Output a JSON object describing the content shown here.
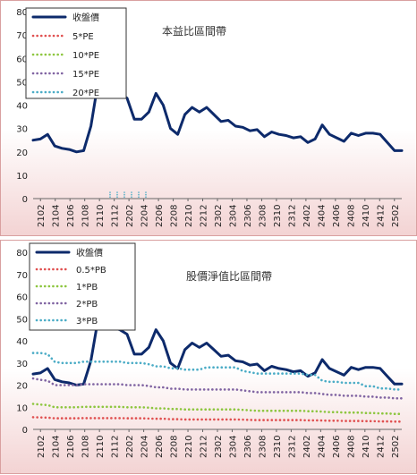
{
  "chart_data": [
    {
      "type": "line",
      "title": "本益比區間帶",
      "ylim": [
        0,
        80
      ],
      "yticks": [
        "0",
        "10",
        "20",
        "30",
        "40",
        "50",
        "60",
        "70",
        "80"
      ],
      "xticks": [
        "2102",
        "2104",
        "2106",
        "2108",
        "2110",
        "2112",
        "2202",
        "2204",
        "2206",
        "2208",
        "2210",
        "2212",
        "2302",
        "2304",
        "2306",
        "2308",
        "2310",
        "2312",
        "2402",
        "2404",
        "2406",
        "2408",
        "2410",
        "2412",
        "2502"
      ],
      "legend_position": "top-left",
      "series": [
        {
          "name": "收盤價",
          "color": "#0d2a6b",
          "style": "solid",
          "values": [
            25,
            25.5,
            27.5,
            22.5,
            21.5,
            21,
            20,
            20.5,
            31,
            50,
            58,
            46,
            45,
            43,
            34,
            34,
            37,
            45,
            40,
            30,
            27.5,
            36,
            39,
            37,
            39,
            36,
            33,
            33.5,
            31,
            30.5,
            29,
            29.5,
            26.5,
            28.5,
            27.5,
            27,
            26,
            26.5,
            24,
            25.5,
            31.5,
            27.5,
            26,
            24.5,
            28,
            27,
            28,
            28,
            27.5,
            24,
            20.5,
            20.5
          ]
        },
        {
          "name": "5*PE",
          "color": "#e05050",
          "style": "dotted",
          "values": []
        },
        {
          "name": "10*PE",
          "color": "#8dc63f",
          "style": "dotted",
          "values": []
        },
        {
          "name": "15*PE",
          "color": "#8064a2",
          "style": "dotted",
          "values": []
        },
        {
          "name": "20*PE",
          "color": "#4bacc6",
          "style": "dotted",
          "values": []
        }
      ]
    },
    {
      "type": "line",
      "title": "股價淨值比區間帶",
      "ylim": [
        0,
        80
      ],
      "yticks": [
        "0",
        "10",
        "20",
        "30",
        "40",
        "50",
        "60",
        "70",
        "80"
      ],
      "xticks": [
        "2102",
        "2104",
        "2106",
        "2108",
        "2110",
        "2112",
        "2202",
        "2204",
        "2206",
        "2208",
        "2210",
        "2212",
        "2302",
        "2304",
        "2306",
        "2308",
        "2310",
        "2312",
        "2402",
        "2404",
        "2406",
        "2408",
        "2410",
        "2412",
        "2502"
      ],
      "legend_position": "top-left",
      "series": [
        {
          "name": "收盤價",
          "color": "#0d2a6b",
          "style": "solid",
          "values": [
            25,
            25.5,
            27.5,
            22.5,
            21.5,
            21,
            20,
            20.5,
            31,
            50,
            58,
            46,
            45,
            43,
            34,
            34,
            37,
            45,
            40,
            30,
            27.5,
            36,
            39,
            37,
            39,
            36,
            33,
            33.5,
            31,
            30.5,
            29,
            29.5,
            26.5,
            28.5,
            27.5,
            27,
            26,
            26.5,
            24,
            25.5,
            31.5,
            27.5,
            26,
            24.5,
            28,
            27,
            28,
            28,
            27.5,
            24,
            20.5,
            20.5
          ]
        },
        {
          "name": "0.5*PB",
          "color": "#e05050",
          "style": "dotted",
          "values": [
            5.5,
            5.4,
            5.3,
            5,
            5,
            5,
            5,
            5.1,
            5.1,
            5.1,
            5.1,
            5.1,
            5.1,
            5,
            5,
            5,
            4.9,
            4.8,
            4.8,
            4.6,
            4.6,
            4.5,
            4.5,
            4.5,
            4.5,
            4.5,
            4.5,
            4.5,
            4.5,
            4.4,
            4.3,
            4.2,
            4.2,
            4.2,
            4.2,
            4.2,
            4.2,
            4.2,
            4.1,
            4.1,
            4,
            3.9,
            3.9,
            3.8,
            3.8,
            3.8,
            3.7,
            3.7,
            3.6,
            3.6,
            3.5,
            3.5
          ]
        },
        {
          "name": "1*PB",
          "color": "#8dc63f",
          "style": "dotted",
          "values": [
            11.5,
            11.2,
            11,
            10,
            10,
            10,
            10,
            10.2,
            10.2,
            10.2,
            10.2,
            10.2,
            10.2,
            10,
            10,
            10,
            9.8,
            9.5,
            9.5,
            9.2,
            9.2,
            9,
            9,
            9,
            9,
            9,
            9,
            9,
            9,
            8.8,
            8.6,
            8.4,
            8.4,
            8.4,
            8.4,
            8.4,
            8.4,
            8.4,
            8.2,
            8.2,
            8,
            7.8,
            7.8,
            7.6,
            7.6,
            7.6,
            7.4,
            7.4,
            7.2,
            7.2,
            7,
            7
          ]
        },
        {
          "name": "2*PB",
          "color": "#8064a2",
          "style": "dotted",
          "values": [
            23,
            22.4,
            22,
            20,
            20,
            20,
            20,
            20.4,
            20.4,
            20.4,
            20.4,
            20.4,
            20.4,
            20,
            20,
            20,
            19.6,
            19,
            19,
            18.4,
            18.4,
            18,
            18,
            18,
            18,
            18,
            18,
            18,
            18,
            17.6,
            17.2,
            16.8,
            16.8,
            16.8,
            16.8,
            16.8,
            16.8,
            16.8,
            16.4,
            16.4,
            16,
            15.6,
            15.6,
            15.2,
            15.2,
            15.2,
            14.8,
            14.8,
            14.4,
            14.4,
            14,
            14
          ]
        },
        {
          "name": "3*PB",
          "color": "#4bacc6",
          "style": "dotted",
          "values": [
            34.5,
            34.5,
            34,
            30.5,
            30,
            30,
            30,
            30.6,
            30.6,
            30.6,
            30.6,
            30.6,
            30.6,
            30,
            30,
            30,
            29.4,
            28.5,
            28.5,
            27.6,
            27.6,
            27,
            27,
            27,
            28,
            28,
            28,
            28,
            28,
            26.4,
            25.8,
            25.2,
            25.2,
            25.2,
            25.2,
            25.2,
            25.2,
            25.2,
            24.6,
            24.6,
            22,
            21.5,
            21.5,
            21,
            21,
            21,
            19.5,
            19.5,
            18.5,
            18.5,
            18,
            18
          ]
        }
      ]
    }
  ]
}
